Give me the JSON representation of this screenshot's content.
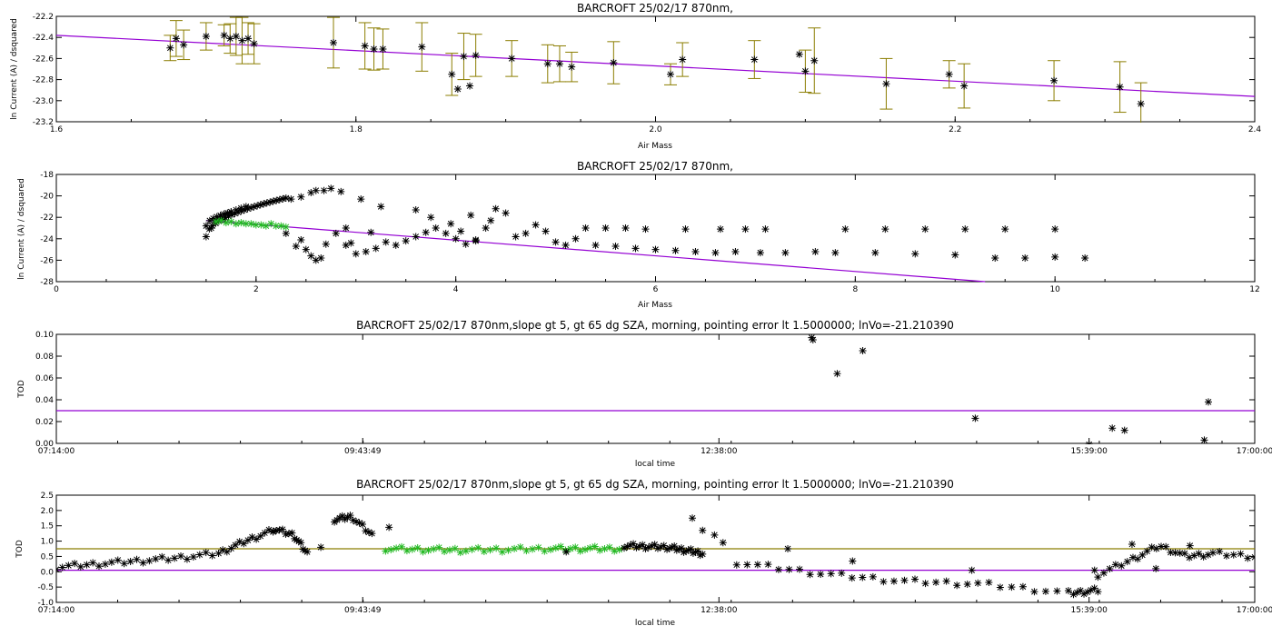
{
  "chart_data": [
    {
      "type": "scatter",
      "title": "BARCROFT 25/02/17 870nm,",
      "xlabel": "Air Mass",
      "ylabel": "ln Current (A) / dsquared",
      "xlim": [
        1.6,
        2.4
      ],
      "ylim": [
        -23.2,
        -22.2
      ],
      "xticks": [
        "1.6",
        "1.8",
        "2.0",
        "2.2",
        "2.4"
      ],
      "yticks": [
        "-22.2",
        "-22.4",
        "-22.6",
        "-22.8",
        "-23.0",
        "-23.2"
      ],
      "colors": {
        "points": "#000000",
        "errorbars": "#8b7d00",
        "fit": "#9400d3"
      },
      "fit_line": {
        "x": [
          1.6,
          2.4
        ],
        "y": [
          -22.38,
          -22.96
        ]
      },
      "points": [
        {
          "x": 1.676,
          "y": -22.5,
          "err": 0.12
        },
        {
          "x": 1.68,
          "y": -22.41,
          "err": 0.17
        },
        {
          "x": 1.685,
          "y": -22.47,
          "err": 0.14
        },
        {
          "x": 1.7,
          "y": -22.39,
          "err": 0.13
        },
        {
          "x": 1.712,
          "y": -22.38,
          "err": 0.1
        },
        {
          "x": 1.716,
          "y": -22.41,
          "err": 0.14
        },
        {
          "x": 1.72,
          "y": -22.39,
          "err": 0.18
        },
        {
          "x": 1.724,
          "y": -22.43,
          "err": 0.22
        },
        {
          "x": 1.728,
          "y": -22.41,
          "err": 0.15
        },
        {
          "x": 1.732,
          "y": -22.46,
          "err": 0.19
        },
        {
          "x": 1.785,
          "y": -22.45,
          "err": 0.24
        },
        {
          "x": 1.806,
          "y": -22.48,
          "err": 0.22
        },
        {
          "x": 1.812,
          "y": -22.51,
          "err": 0.2
        },
        {
          "x": 1.818,
          "y": -22.51,
          "err": 0.19
        },
        {
          "x": 1.844,
          "y": -22.49,
          "err": 0.23
        },
        {
          "x": 1.864,
          "y": -22.75,
          "err": 0.2
        },
        {
          "x": 1.868,
          "y": -22.89,
          "err": 0.0
        },
        {
          "x": 1.872,
          "y": -22.58,
          "err": 0.22
        },
        {
          "x": 1.876,
          "y": -22.86,
          "err": 0.0
        },
        {
          "x": 1.88,
          "y": -22.57,
          "err": 0.2
        },
        {
          "x": 1.904,
          "y": -22.6,
          "err": 0.17
        },
        {
          "x": 1.928,
          "y": -22.65,
          "err": 0.18
        },
        {
          "x": 1.936,
          "y": -22.65,
          "err": 0.17
        },
        {
          "x": 1.944,
          "y": -22.68,
          "err": 0.14
        },
        {
          "x": 1.972,
          "y": -22.64,
          "err": 0.2
        },
        {
          "x": 2.01,
          "y": -22.75,
          "err": 0.1
        },
        {
          "x": 2.018,
          "y": -22.61,
          "err": 0.16
        },
        {
          "x": 2.066,
          "y": -22.61,
          "err": 0.18
        },
        {
          "x": 2.096,
          "y": -22.56,
          "err": 0.0
        },
        {
          "x": 2.1,
          "y": -22.72,
          "err": 0.2
        },
        {
          "x": 2.106,
          "y": -22.62,
          "err": 0.31
        },
        {
          "x": 2.154,
          "y": -22.84,
          "err": 0.24
        },
        {
          "x": 2.196,
          "y": -22.75,
          "err": 0.13
        },
        {
          "x": 2.206,
          "y": -22.86,
          "err": 0.21
        },
        {
          "x": 2.266,
          "y": -22.81,
          "err": 0.19
        },
        {
          "x": 2.31,
          "y": -22.87,
          "err": 0.24
        },
        {
          "x": 2.324,
          "y": -23.03,
          "err": 0.2
        }
      ]
    },
    {
      "type": "scatter",
      "title": "BARCROFT 25/02/17 870nm,",
      "xlabel": "Air Mass",
      "ylabel": "ln Current (A) / dsquared",
      "xlim": [
        0,
        12
      ],
      "ylim": [
        -28,
        -18
      ],
      "xticks": [
        "0",
        "2",
        "4",
        "6",
        "8",
        "10",
        "12"
      ],
      "yticks": [
        "-18",
        "-20",
        "-22",
        "-24",
        "-26",
        "-28"
      ],
      "colors": {
        "black": "#000000",
        "green": "#22b922",
        "fit": "#9400d3"
      },
      "fit_line": {
        "x": [
          1.5,
          9.3
        ],
        "y": [
          -22.3,
          -28.0
        ]
      },
      "segments": [
        {
          "x1": 1.5,
          "y1": -23.8,
          "x2": 2.3,
          "y2": -20.2,
          "n": 26
        },
        {
          "x1": 1.5,
          "y1": -22.8,
          "x2": 1.75,
          "y2": -21.5,
          "n": 8
        },
        {
          "x1": 1.55,
          "y1": -23.0,
          "x2": 1.9,
          "y2": -21.0,
          "n": 8
        }
      ],
      "black_points": [
        {
          "x": 2.35,
          "y": -20.3
        },
        {
          "x": 2.45,
          "y": -20.1
        },
        {
          "x": 2.55,
          "y": -19.7
        },
        {
          "x": 2.6,
          "y": -19.5
        },
        {
          "x": 2.68,
          "y": -19.5
        },
        {
          "x": 2.75,
          "y": -19.3
        },
        {
          "x": 2.85,
          "y": -19.6
        },
        {
          "x": 3.05,
          "y": -20.3
        },
        {
          "x": 2.9,
          "y": -23.0
        },
        {
          "x": 3.25,
          "y": -21.0
        },
        {
          "x": 3.6,
          "y": -21.3
        },
        {
          "x": 2.3,
          "y": -23.5
        },
        {
          "x": 2.4,
          "y": -24.7
        },
        {
          "x": 2.45,
          "y": -24.1
        },
        {
          "x": 2.5,
          "y": -25.0
        },
        {
          "x": 2.55,
          "y": -25.6
        },
        {
          "x": 2.6,
          "y": -26.0
        },
        {
          "x": 2.65,
          "y": -25.8
        },
        {
          "x": 2.7,
          "y": -24.5
        },
        {
          "x": 2.8,
          "y": -23.5
        },
        {
          "x": 2.9,
          "y": -24.6
        },
        {
          "x": 3.0,
          "y": -25.4
        },
        {
          "x": 3.1,
          "y": -25.2
        },
        {
          "x": 3.2,
          "y": -24.9
        },
        {
          "x": 3.4,
          "y": -24.6
        },
        {
          "x": 3.5,
          "y": -24.2
        },
        {
          "x": 3.6,
          "y": -23.8
        },
        {
          "x": 3.7,
          "y": -23.4
        },
        {
          "x": 3.8,
          "y": -23.0
        },
        {
          "x": 3.9,
          "y": -23.5
        },
        {
          "x": 4.0,
          "y": -24.0
        },
        {
          "x": 4.1,
          "y": -24.5
        },
        {
          "x": 4.2,
          "y": -24.1
        },
        {
          "x": 4.3,
          "y": -23.0
        },
        {
          "x": 4.35,
          "y": -22.3
        },
        {
          "x": 4.4,
          "y": -21.2
        },
        {
          "x": 4.5,
          "y": -21.6
        },
        {
          "x": 4.6,
          "y": -23.8
        },
        {
          "x": 4.7,
          "y": -23.5
        },
        {
          "x": 4.8,
          "y": -22.7
        },
        {
          "x": 4.9,
          "y": -23.3
        },
        {
          "x": 5.0,
          "y": -24.3
        },
        {
          "x": 5.1,
          "y": -24.6
        },
        {
          "x": 5.2,
          "y": -24.0
        },
        {
          "x": 5.3,
          "y": -23.0
        },
        {
          "x": 5.4,
          "y": -24.6
        },
        {
          "x": 5.5,
          "y": -23.0
        },
        {
          "x": 5.6,
          "y": -24.7
        },
        {
          "x": 5.7,
          "y": -23.0
        },
        {
          "x": 5.8,
          "y": -24.9
        },
        {
          "x": 5.9,
          "y": -23.1
        },
        {
          "x": 6.0,
          "y": -25.0
        },
        {
          "x": 6.2,
          "y": -25.1
        },
        {
          "x": 6.3,
          "y": -23.1
        },
        {
          "x": 6.4,
          "y": -25.2
        },
        {
          "x": 6.6,
          "y": -25.3
        },
        {
          "x": 6.65,
          "y": -23.1
        },
        {
          "x": 6.8,
          "y": -25.2
        },
        {
          "x": 6.9,
          "y": -23.1
        },
        {
          "x": 7.05,
          "y": -25.3
        },
        {
          "x": 7.1,
          "y": -23.1
        },
        {
          "x": 7.3,
          "y": -25.3
        },
        {
          "x": 7.6,
          "y": -25.2
        },
        {
          "x": 7.8,
          "y": -25.3
        },
        {
          "x": 7.9,
          "y": -23.1
        },
        {
          "x": 8.2,
          "y": -25.3
        },
        {
          "x": 8.3,
          "y": -23.1
        },
        {
          "x": 8.6,
          "y": -25.4
        },
        {
          "x": 8.7,
          "y": -23.1
        },
        {
          "x": 9.0,
          "y": -25.5
        },
        {
          "x": 9.1,
          "y": -23.1
        },
        {
          "x": 9.4,
          "y": -25.8
        },
        {
          "x": 9.5,
          "y": -23.1
        },
        {
          "x": 9.7,
          "y": -25.8
        },
        {
          "x": 10.0,
          "y": -25.7
        },
        {
          "x": 10.0,
          "y": -23.1
        },
        {
          "x": 10.3,
          "y": -25.8
        },
        {
          "x": 4.15,
          "y": -21.8
        },
        {
          "x": 4.2,
          "y": -24.2
        },
        {
          "x": 3.95,
          "y": -22.6
        },
        {
          "x": 4.05,
          "y": -23.3
        },
        {
          "x": 3.75,
          "y": -22.0
        },
        {
          "x": 3.3,
          "y": -24.3
        },
        {
          "x": 3.15,
          "y": -23.4
        },
        {
          "x": 2.95,
          "y": -24.4
        }
      ],
      "green_points": [
        {
          "x": 1.6,
          "y": -22.4
        },
        {
          "x": 1.7,
          "y": -22.5
        },
        {
          "x": 1.8,
          "y": -22.6
        },
        {
          "x": 1.9,
          "y": -22.6
        },
        {
          "x": 2.0,
          "y": -22.7
        },
        {
          "x": 2.1,
          "y": -22.8
        },
        {
          "x": 2.2,
          "y": -22.8
        },
        {
          "x": 2.3,
          "y": -22.9
        },
        {
          "x": 1.65,
          "y": -22.3
        },
        {
          "x": 1.75,
          "y": -22.4
        },
        {
          "x": 1.85,
          "y": -22.5
        },
        {
          "x": 1.95,
          "y": -22.6
        },
        {
          "x": 2.05,
          "y": -22.7
        },
        {
          "x": 2.15,
          "y": -22.6
        },
        {
          "x": 2.25,
          "y": -22.8
        }
      ]
    },
    {
      "type": "scatter",
      "title": "BARCROFT 25/02/17 870nm,slope gt 5, gt 65 dg SZA, morning, pointing error lt 1.5000000; lnVo=-21.210390",
      "xlabel": "local time",
      "ylabel": "TOD",
      "xlim": [
        26040,
        61200
      ],
      "ylim": [
        0.0,
        0.1
      ],
      "xticks": [
        {
          "label": "07:14:00",
          "value": 26040
        },
        {
          "label": "09:43:49",
          "value": 35029
        },
        {
          "label": "12:38:00",
          "value": 45480
        },
        {
          "label": "15:39:00",
          "value": 56340
        },
        {
          "label": "17:00:00",
          "value": 61200
        }
      ],
      "yticks": [
        "0.00",
        "0.02",
        "0.04",
        "0.06",
        "0.08",
        "0.10"
      ],
      "colors": {
        "points": "#000000",
        "ref_line": "#9400d3"
      },
      "ref_line": 0.03,
      "points": [
        {
          "x": 48200,
          "y": 0.097
        },
        {
          "x": 48240,
          "y": 0.095
        },
        {
          "x": 48950,
          "y": 0.064
        },
        {
          "x": 49700,
          "y": 0.085
        },
        {
          "x": 53000,
          "y": 0.023
        },
        {
          "x": 56340,
          "y": -0.001
        },
        {
          "x": 57020,
          "y": 0.014
        },
        {
          "x": 57380,
          "y": 0.012
        },
        {
          "x": 59720,
          "y": 0.003
        },
        {
          "x": 59840,
          "y": 0.038
        }
      ]
    },
    {
      "type": "scatter",
      "title": "BARCROFT 25/02/17 870nm,slope gt 5, gt 65 dg SZA, morning, pointing error lt 1.5000000; lnVo=-21.210390",
      "xlabel": "local time",
      "ylabel": "TOD",
      "xlim": [
        26040,
        61200
      ],
      "ylim": [
        -1.0,
        2.5
      ],
      "xticks": [
        {
          "label": "07:14:00",
          "value": 26040
        },
        {
          "label": "09:43:49",
          "value": 35029
        },
        {
          "label": "12:38:00",
          "value": 45480
        },
        {
          "label": "15:39:00",
          "value": 56340
        },
        {
          "label": "17:00:00",
          "value": 61200
        }
      ],
      "yticks": [
        "2.5",
        "2.0",
        "1.5",
        "1.0",
        "0.5",
        "0.0",
        "-0.5",
        "-1.0"
      ],
      "colors": {
        "black": "#000000",
        "green": "#22b922",
        "ref_olive": "#8b7d00",
        "ref_purple": "#9400d3"
      },
      "ref_lines": [
        0.75,
        0.05
      ],
      "polylines": [
        {
          "color": "black",
          "n": 40,
          "xs": [
            26040,
            27200,
            28400,
            29600,
            30800,
            31600,
            32400
          ],
          "ys": [
            0.15,
            0.25,
            0.35,
            0.45,
            0.6,
            1.0,
            1.35
          ]
        },
        {
          "color": "black",
          "n": 14,
          "xs": [
            32400,
            33000,
            33400
          ],
          "ys": [
            1.4,
            1.2,
            0.6
          ]
        },
        {
          "color": "black",
          "n": 14,
          "xs": [
            34200,
            34700,
            35300
          ],
          "ys": [
            1.7,
            1.8,
            1.2
          ]
        },
        {
          "color": "green",
          "n": 45,
          "xs": [
            35700,
            38000,
            40600,
            42700
          ],
          "ys": [
            0.75,
            0.7,
            0.75,
            0.75
          ]
        },
        {
          "color": "black",
          "n": 30,
          "xs": [
            42700,
            44000,
            45000
          ],
          "ys": [
            0.85,
            0.8,
            0.6
          ]
        },
        {
          "color": "black",
          "n": 40,
          "xs": [
            46000,
            48400,
            50800,
            53200,
            55800,
            56600
          ],
          "ys": [
            0.3,
            -0.05,
            -0.3,
            -0.4,
            -0.7,
            -0.6
          ]
        },
        {
          "color": "black",
          "n": 30,
          "xs": [
            56600,
            57600,
            58400,
            59200,
            60000,
            61200
          ],
          "ys": [
            -0.1,
            0.4,
            0.85,
            0.5,
            0.6,
            0.5
          ]
        }
      ],
      "extra_points": [
        {
          "x": 44700,
          "y": 1.75
        },
        {
          "x": 45000,
          "y": 1.35
        },
        {
          "x": 45350,
          "y": 1.2
        },
        {
          "x": 45600,
          "y": 0.95
        },
        {
          "x": 47500,
          "y": 0.75
        },
        {
          "x": 35800,
          "y": 1.45
        },
        {
          "x": 33800,
          "y": 0.8
        },
        {
          "x": 49400,
          "y": 0.35
        },
        {
          "x": 52900,
          "y": 0.05
        },
        {
          "x": 56500,
          "y": 0.05
        },
        {
          "x": 57600,
          "y": 0.9
        },
        {
          "x": 41000,
          "y": 0.65
        },
        {
          "x": 58300,
          "y": 0.1
        },
        {
          "x": 59300,
          "y": 0.85
        }
      ]
    }
  ]
}
